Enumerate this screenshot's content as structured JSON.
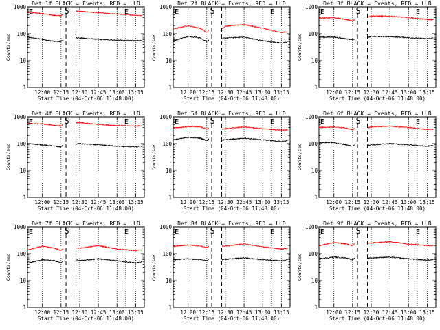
{
  "chart_data": [
    {
      "type": "line",
      "title": "Det 1f BLACK = Events, RED = LLD",
      "ylabel": "Counts/sec",
      "xlabel": "Start Time (04-Oct-06 11:48:00)",
      "x_ticks": [
        "12:00",
        "12:15",
        "12:30",
        "12:45",
        "13:00",
        "13:15"
      ],
      "y_ticks": [
        "1",
        "10",
        "100",
        "1000"
      ],
      "ylim": [
        1,
        1000
      ],
      "yscale": "log",
      "markers": [
        {
          "label": "E",
          "time": "11:48"
        },
        {
          "label": "S",
          "time": "12:19"
        },
        {
          "label": "E",
          "time": "13:07"
        }
      ],
      "series": [
        {
          "name": "Events",
          "color": "#000000",
          "x": [
            "11:48",
            "12:00",
            "12:10",
            "12:15",
            "12:17",
            "12:27",
            "12:30",
            "12:45",
            "13:00",
            "13:15",
            "13:20"
          ],
          "values": [
            75,
            62,
            52,
            52,
            60,
            72,
            70,
            62,
            58,
            55,
            58
          ]
        },
        {
          "name": "LLD",
          "color": "#ff0000",
          "x": [
            "11:48",
            "12:00",
            "12:10",
            "12:15",
            "12:17",
            "12:27",
            "12:30",
            "12:45",
            "13:00",
            "13:15",
            "13:20"
          ],
          "values": [
            650,
            560,
            480,
            470,
            520,
            700,
            680,
            600,
            540,
            490,
            470
          ]
        }
      ]
    },
    {
      "type": "line",
      "title": "Det 2f BLACK = Events, RED = LLD",
      "ylabel": "Counts/sec",
      "xlabel": "Start Time (04-Oct-06 11:48:00)",
      "x_ticks": [
        "12:00",
        "12:15",
        "12:30",
        "12:45",
        "13:00",
        "13:15"
      ],
      "y_ticks": [
        "1",
        "10",
        "100",
        "1000"
      ],
      "ylim": [
        1,
        1000
      ],
      "yscale": "log",
      "markers": [
        {
          "label": "E",
          "time": "11:48"
        },
        {
          "label": "S",
          "time": "12:19"
        },
        {
          "label": "E",
          "time": "13:07"
        }
      ],
      "series": [
        {
          "name": "Events",
          "color": "#000000",
          "x": [
            "11:48",
            "12:00",
            "12:10",
            "12:15",
            "12:17",
            "12:27",
            "12:30",
            "12:45",
            "13:00",
            "13:15",
            "13:20"
          ],
          "values": [
            55,
            80,
            70,
            50,
            60,
            65,
            70,
            75,
            55,
            45,
            50
          ]
        },
        {
          "name": "LLD",
          "color": "#ff0000",
          "x": [
            "11:48",
            "12:00",
            "12:10",
            "12:15",
            "12:17",
            "12:27",
            "12:30",
            "12:45",
            "13:00",
            "13:15",
            "13:20"
          ],
          "values": [
            150,
            200,
            160,
            110,
            140,
            150,
            190,
            220,
            160,
            110,
            120
          ]
        }
      ]
    },
    {
      "type": "line",
      "title": "Det 3f BLACK = Events, RED = LLD",
      "ylabel": "Counts/sec",
      "xlabel": "Start Time (04-Oct-06 11:48:00)",
      "x_ticks": [
        "12:00",
        "12:15",
        "12:30",
        "12:45",
        "13:00",
        "13:15"
      ],
      "y_ticks": [
        "1",
        "10",
        "100",
        "1000"
      ],
      "ylim": [
        1,
        1000
      ],
      "yscale": "log",
      "markers": [
        {
          "label": "E",
          "time": "11:48"
        },
        {
          "label": "S",
          "time": "12:19"
        },
        {
          "label": "E",
          "time": "13:07"
        }
      ],
      "series": [
        {
          "name": "Events",
          "color": "#000000",
          "x": [
            "11:48",
            "12:00",
            "12:10",
            "12:15",
            "12:17",
            "12:27",
            "12:30",
            "12:45",
            "13:00",
            "13:15",
            "13:20"
          ],
          "values": [
            75,
            75,
            65,
            60,
            62,
            72,
            80,
            78,
            72,
            65,
            70
          ]
        },
        {
          "name": "LLD",
          "color": "#ff0000",
          "x": [
            "11:48",
            "12:00",
            "12:10",
            "12:15",
            "12:17",
            "12:27",
            "12:30",
            "12:45",
            "13:00",
            "13:15",
            "13:20"
          ],
          "values": [
            380,
            400,
            340,
            300,
            340,
            420,
            460,
            450,
            400,
            340,
            330
          ]
        }
      ]
    },
    {
      "type": "line",
      "title": "Det 4f BLACK = Events, RED = LLD",
      "ylabel": "Counts/sec",
      "xlabel": "Start Time (04-Oct-06 11:48:00)",
      "x_ticks": [
        "12:00",
        "12:15",
        "12:30",
        "12:45",
        "13:00",
        "13:15"
      ],
      "y_ticks": [
        "1",
        "10",
        "100",
        "1000"
      ],
      "ylim": [
        1,
        1000
      ],
      "yscale": "log",
      "markers": [
        {
          "label": "E",
          "time": "11:48"
        },
        {
          "label": "S",
          "time": "12:19"
        },
        {
          "label": "E",
          "time": "13:07"
        }
      ],
      "series": [
        {
          "name": "Events",
          "color": "#000000",
          "x": [
            "11:48",
            "12:00",
            "12:10",
            "12:15",
            "12:17",
            "12:27",
            "12:30",
            "12:45",
            "13:00",
            "13:15",
            "13:20"
          ],
          "values": [
            100,
            90,
            80,
            75,
            90,
            95,
            100,
            90,
            80,
            75,
            80
          ]
        },
        {
          "name": "LLD",
          "color": "#ff0000",
          "x": [
            "11:48",
            "12:00",
            "12:10",
            "12:15",
            "12:17",
            "12:27",
            "12:30",
            "12:45",
            "13:00",
            "13:15",
            "13:20"
          ],
          "values": [
            560,
            540,
            480,
            450,
            520,
            600,
            600,
            520,
            470,
            450,
            460
          ]
        }
      ]
    },
    {
      "type": "line",
      "title": "Det 5f BLACK = Events, RED = LLD",
      "ylabel": "Counts/sec",
      "xlabel": "Start Time (04-Oct-06 11:48:00)",
      "x_ticks": [
        "12:00",
        "12:15",
        "12:30",
        "12:45",
        "13:00",
        "13:15"
      ],
      "y_ticks": [
        "1",
        "10",
        "100",
        "1000"
      ],
      "ylim": [
        1,
        1000
      ],
      "yscale": "log",
      "markers": [
        {
          "label": "E",
          "time": "11:48"
        },
        {
          "label": "S",
          "time": "12:19"
        },
        {
          "label": "E",
          "time": "13:07"
        }
      ],
      "series": [
        {
          "name": "Events",
          "color": "#000000",
          "x": [
            "11:48",
            "12:00",
            "12:10",
            "12:15",
            "12:17",
            "12:27",
            "12:30",
            "12:45",
            "13:00",
            "13:15",
            "13:20"
          ],
          "values": [
            140,
            170,
            160,
            130,
            150,
            135,
            140,
            160,
            140,
            120,
            130
          ]
        },
        {
          "name": "LLD",
          "color": "#ff0000",
          "x": [
            "11:48",
            "12:00",
            "12:10",
            "12:15",
            "12:17",
            "12:27",
            "12:30",
            "12:45",
            "13:00",
            "13:15",
            "13:20"
          ],
          "values": [
            380,
            430,
            420,
            350,
            380,
            340,
            360,
            420,
            360,
            320,
            330
          ]
        }
      ]
    },
    {
      "type": "line",
      "title": "Det 6f BLACK = Events, RED = LLD",
      "ylabel": "Counts/sec",
      "xlabel": "Start Time (04-Oct-06 11:48:00)",
      "x_ticks": [
        "12:00",
        "12:15",
        "12:30",
        "12:45",
        "13:00",
        "13:15"
      ],
      "y_ticks": [
        "1",
        "10",
        "100",
        "1000"
      ],
      "ylim": [
        1,
        1000
      ],
      "yscale": "log",
      "markers": [
        {
          "label": "E",
          "time": "11:48"
        },
        {
          "label": "S",
          "time": "12:19"
        },
        {
          "label": "E",
          "time": "13:07"
        }
      ],
      "series": [
        {
          "name": "Events",
          "color": "#000000",
          "x": [
            "11:48",
            "12:00",
            "12:10",
            "12:15",
            "12:17",
            "12:27",
            "12:30",
            "12:45",
            "13:00",
            "13:15",
            "13:20"
          ],
          "values": [
            110,
            110,
            90,
            80,
            95,
            85,
            90,
            100,
            90,
            80,
            85
          ]
        },
        {
          "name": "LLD",
          "color": "#ff0000",
          "x": [
            "11:48",
            "12:00",
            "12:10",
            "12:15",
            "12:17",
            "12:27",
            "12:30",
            "12:45",
            "13:00",
            "13:15",
            "13:20"
          ],
          "values": [
            400,
            420,
            380,
            330,
            380,
            380,
            420,
            450,
            400,
            340,
            350
          ]
        }
      ]
    },
    {
      "type": "line",
      "title": "Det 7f BLACK = Events, RED = LLD",
      "ylabel": "Counts/sec",
      "xlabel": "Start Time (04-Oct-06 11:48:00)",
      "x_ticks": [
        "12:00",
        "12:15",
        "12:30",
        "12:45",
        "13:00",
        "13:15"
      ],
      "y_ticks": [
        "1",
        "10",
        "100",
        "1000"
      ],
      "ylim": [
        1,
        1000
      ],
      "yscale": "log",
      "markers": [
        {
          "label": "E",
          "time": "11:48"
        },
        {
          "label": "S",
          "time": "12:19"
        },
        {
          "label": "E",
          "time": "13:07"
        }
      ],
      "series": [
        {
          "name": "Events",
          "color": "#000000",
          "x": [
            "11:48",
            "12:00",
            "12:10",
            "12:15",
            "12:17",
            "12:27",
            "12:30",
            "12:45",
            "13:00",
            "13:15",
            "13:20"
          ],
          "values": [
            45,
            60,
            55,
            45,
            55,
            60,
            55,
            65,
            55,
            45,
            50
          ]
        },
        {
          "name": "LLD",
          "color": "#ff0000",
          "x": [
            "11:48",
            "12:00",
            "12:10",
            "12:15",
            "12:17",
            "12:27",
            "12:30",
            "12:45",
            "13:00",
            "13:15",
            "13:20"
          ],
          "values": [
            140,
            190,
            160,
            130,
            160,
            170,
            160,
            200,
            150,
            130,
            140
          ]
        }
      ]
    },
    {
      "type": "line",
      "title": "Det 8f BLACK = Events, RED = LLD",
      "ylabel": "Counts/sec",
      "xlabel": "Start Time (04-Oct-06 11:48:00)",
      "x_ticks": [
        "12:00",
        "12:15",
        "12:30",
        "12:45",
        "13:00",
        "13:15"
      ],
      "y_ticks": [
        "1",
        "10",
        "100",
        "1000"
      ],
      "ylim": [
        1,
        1000
      ],
      "yscale": "log",
      "markers": [
        {
          "label": "E",
          "time": "11:48"
        },
        {
          "label": "S",
          "time": "12:19"
        },
        {
          "label": "E",
          "time": "13:07"
        }
      ],
      "series": [
        {
          "name": "Events",
          "color": "#000000",
          "x": [
            "11:48",
            "12:00",
            "12:10",
            "12:15",
            "12:17",
            "12:27",
            "12:30",
            "12:45",
            "13:00",
            "13:15",
            "13:20"
          ],
          "values": [
            60,
            65,
            60,
            55,
            62,
            60,
            62,
            70,
            60,
            55,
            60
          ]
        },
        {
          "name": "LLD",
          "color": "#ff0000",
          "x": [
            "11:48",
            "12:00",
            "12:10",
            "12:15",
            "12:17",
            "12:27",
            "12:30",
            "12:45",
            "13:00",
            "13:15",
            "13:20"
          ],
          "values": [
            190,
            210,
            190,
            170,
            190,
            190,
            190,
            230,
            180,
            150,
            160
          ]
        }
      ]
    },
    {
      "type": "line",
      "title": "Det 9f BLACK = Events, RED = LLD",
      "ylabel": "Counts/sec",
      "xlabel": "Start Time (04-Oct-06 11:48:00)",
      "x_ticks": [
        "12:00",
        "12:15",
        "12:30",
        "12:45",
        "13:00",
        "13:15"
      ],
      "y_ticks": [
        "1",
        "10",
        "100",
        "1000"
      ],
      "ylim": [
        1,
        1000
      ],
      "yscale": "log",
      "markers": [
        {
          "label": "E",
          "time": "11:48"
        },
        {
          "label": "S",
          "time": "12:19"
        },
        {
          "label": "E",
          "time": "13:07"
        }
      ],
      "series": [
        {
          "name": "Events",
          "color": "#000000",
          "x": [
            "11:48",
            "12:00",
            "12:10",
            "12:15",
            "12:17",
            "12:27",
            "12:30",
            "12:45",
            "13:00",
            "13:15",
            "13:20"
          ],
          "values": [
            65,
            75,
            70,
            60,
            70,
            68,
            70,
            75,
            65,
            58,
            60
          ]
        },
        {
          "name": "LLD",
          "color": "#ff0000",
          "x": [
            "11:48",
            "12:00",
            "12:10",
            "12:15",
            "12:17",
            "12:27",
            "12:30",
            "12:45",
            "13:00",
            "13:15",
            "13:20"
          ],
          "values": [
            200,
            260,
            230,
            200,
            240,
            240,
            250,
            280,
            230,
            200,
            200
          ]
        }
      ]
    }
  ]
}
